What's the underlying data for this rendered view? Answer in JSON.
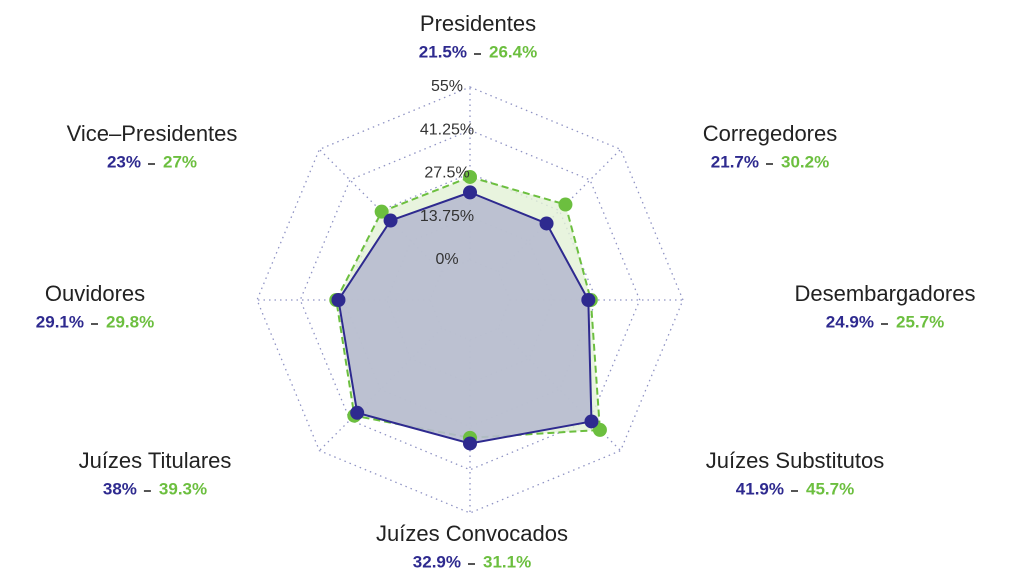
{
  "chart_data": {
    "type": "radar",
    "categories": [
      "Presidentes",
      "Corregedores",
      "Desembargadores",
      "Juízes Substitutos",
      "Juízes Convocados",
      "Juízes Titulares",
      "Ouvidores",
      "Vice–Presidentes"
    ],
    "series": [
      {
        "color": "#2e2a8f",
        "fill": "#b7bbcf",
        "values": [
          21.5,
          21.7,
          24.9,
          41.9,
          32.9,
          38,
          29.1,
          23
        ],
        "value_labels": [
          "21.5%",
          "21.7%",
          "24.9%",
          "41.9%",
          "32.9%",
          "38%",
          "29.1%",
          "23%"
        ]
      },
      {
        "color": "#6cbf3f",
        "fill": "#e2f1d6",
        "dashed": true,
        "values": [
          26.4,
          30.2,
          25.7,
          45.7,
          31.1,
          39.3,
          29.8,
          27
        ],
        "value_labels": [
          "26.4%",
          "30.2%",
          "25.7%",
          "45.7%",
          "31.1%",
          "39.3%",
          "29.8%",
          "27%"
        ]
      }
    ],
    "ylim": [
      0,
      55
    ],
    "yticks": [
      {
        "value": 0,
        "label": "0%"
      },
      {
        "value": 13.75,
        "label": "13.75%"
      },
      {
        "value": 27.5,
        "label": "27.5%"
      },
      {
        "value": 41.25,
        "label": "41.25%"
      },
      {
        "value": 55,
        "label": "55%"
      }
    ],
    "grid": true
  }
}
